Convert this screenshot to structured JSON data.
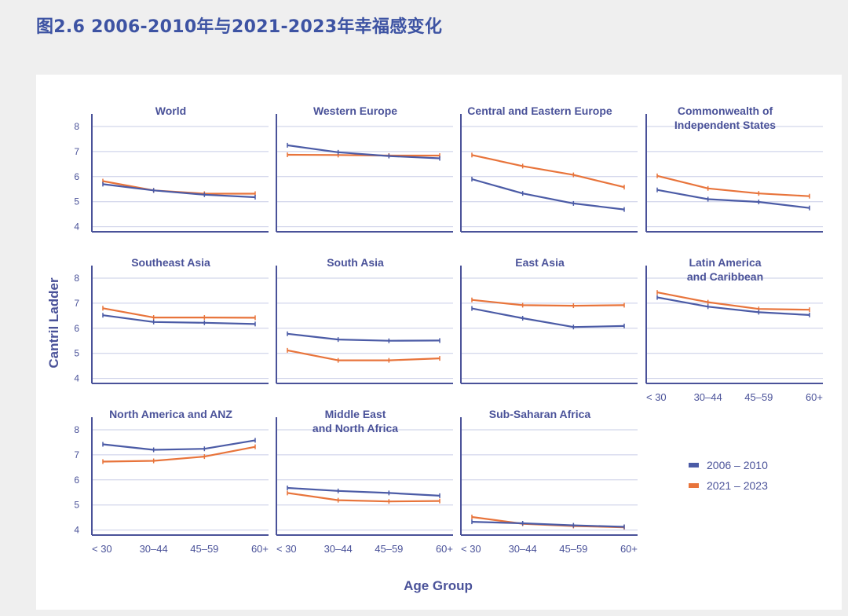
{
  "page": {
    "title": "图2.6 2006-2010年与2021-2023年幸福感变化"
  },
  "chart_data": {
    "type": "line",
    "small_multiples": true,
    "xlabel": "Age Group",
    "ylabel": "Cantril Ladder",
    "categories": [
      "< 30",
      "30–44",
      "45–59",
      "60+"
    ],
    "ylim": [
      3.8,
      8.5
    ],
    "yticks": [
      4,
      5,
      6,
      7,
      8
    ],
    "grid": true,
    "legend_position": "bottom-right",
    "legend": [
      {
        "label": "2006 – 2010",
        "color": "#4b5ba6"
      },
      {
        "label": "2021 – 2023",
        "color": "#e8743b"
      }
    ],
    "panels": [
      {
        "title": [
          "World"
        ],
        "series": [
          [
            5.7,
            5.45,
            5.28,
            5.18
          ],
          [
            5.82,
            5.45,
            5.32,
            5.32
          ]
        ]
      },
      {
        "title": [
          "Western Europe"
        ],
        "series": [
          [
            7.25,
            6.97,
            6.82,
            6.73
          ],
          [
            6.87,
            6.86,
            6.84,
            6.84
          ]
        ]
      },
      {
        "title": [
          "Central and Eastern Europe"
        ],
        "series": [
          [
            5.9,
            5.33,
            4.93,
            4.69
          ],
          [
            6.86,
            6.42,
            6.07,
            5.58
          ]
        ]
      },
      {
        "title": [
          "Commonwealth of",
          "Independent States"
        ],
        "series": [
          [
            5.47,
            5.1,
            4.99,
            4.75
          ],
          [
            6.03,
            5.53,
            5.33,
            5.22
          ]
        ]
      },
      {
        "title": [
          "Southeast Asia"
        ],
        "series": [
          [
            6.52,
            6.25,
            6.22,
            6.17
          ],
          [
            6.8,
            6.43,
            6.43,
            6.42
          ]
        ]
      },
      {
        "title": [
          "South Asia"
        ],
        "series": [
          [
            5.78,
            5.55,
            5.5,
            5.51
          ],
          [
            5.12,
            4.72,
            4.72,
            4.8
          ]
        ]
      },
      {
        "title": [
          "East Asia"
        ],
        "series": [
          [
            6.79,
            6.4,
            6.05,
            6.09
          ],
          [
            7.13,
            6.92,
            6.9,
            6.92
          ]
        ]
      },
      {
        "title": [
          "Latin America",
          "and Caribbean"
        ],
        "series": [
          [
            7.23,
            6.86,
            6.64,
            6.53
          ],
          [
            7.43,
            7.04,
            6.77,
            6.74
          ]
        ]
      },
      {
        "title": [
          "North America and ANZ"
        ],
        "series": [
          [
            7.42,
            7.2,
            7.24,
            7.58
          ],
          [
            6.73,
            6.76,
            6.93,
            7.32
          ]
        ]
      },
      {
        "title": [
          "Middle East",
          "and North Africa"
        ],
        "series": [
          [
            5.68,
            5.56,
            5.48,
            5.37
          ],
          [
            5.48,
            5.19,
            5.14,
            5.16
          ]
        ]
      },
      {
        "title": [
          "Sub-Saharan Africa"
        ],
        "series": [
          [
            4.33,
            4.27,
            4.19,
            4.13
          ],
          [
            4.52,
            4.25,
            4.16,
            4.11
          ]
        ]
      }
    ]
  }
}
